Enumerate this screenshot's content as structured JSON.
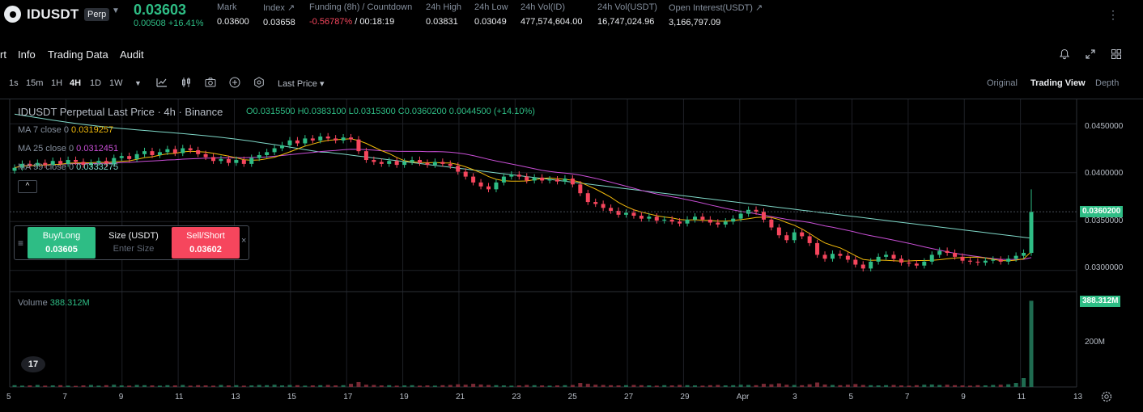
{
  "ticker": {
    "symbol": "IDUSDT",
    "badge": "Perp",
    "last_price": "0.03603",
    "change": "0.00508 +16.41%",
    "stats": [
      {
        "label": "Mark",
        "value": "0.03600"
      },
      {
        "label": "Index ↗",
        "value": "0.03658"
      },
      {
        "label": "Funding (8h) / Countdown",
        "value_neg": "-0.56787%",
        "value": " / 00:18:19"
      },
      {
        "label": "24h High",
        "value": "0.03831"
      },
      {
        "label": "24h Low",
        "value": "0.03049"
      },
      {
        "label": "24h Vol(ID)",
        "value": "477,574,604.00"
      },
      {
        "label": "24h Vol(USDT)",
        "value": "16,747,024.96"
      },
      {
        "label": "Open Interest(USDT) ↗",
        "value": "3,166,797.09"
      }
    ]
  },
  "tabs": [
    "rt",
    "Info",
    "Trading Data",
    "Audit"
  ],
  "toolbar": {
    "timeframes": [
      "1s",
      "15m",
      "1H",
      "4H",
      "1D",
      "1W"
    ],
    "active_timeframe": "4H",
    "price_type": "Last Price",
    "views": [
      "Original",
      "Trading View",
      "Depth"
    ],
    "active_view": "Trading View"
  },
  "legend": {
    "title": "IDUSDT Perpetual Last Price · 4h · Binance",
    "ohlc": "O0.0315500 H0.0383100 L0.0315300 C0.0360200 0.0044500 (+14.10%)",
    "ma": [
      {
        "label": "MA 7 close 0",
        "value": "0.0319257",
        "color": "#f0b90b"
      },
      {
        "label": "MA 25 close 0",
        "value": "0.0312451",
        "color": "#c94fd6"
      },
      {
        "label": "MA 99 close 0",
        "value": "0.0333275",
        "color": "#7fd8c8"
      }
    ],
    "volume_label": "Volume",
    "volume_value": "388.312M",
    "collapse_icon": "^"
  },
  "order_panel": {
    "buy_label": "Buy/Long",
    "buy_price": "0.03605",
    "size_label": "Size (USDT)",
    "size_placeholder": "Enter Size",
    "sell_label": "Sell/Short",
    "sell_price": "0.03602",
    "close_icon": "×"
  },
  "price_axis": [
    "0.0450000",
    "0.0400000",
    "0.0350000",
    "0.0300000"
  ],
  "price_tag": "0.0360200",
  "volume_axis": [
    "200M"
  ],
  "volume_tag": "388.312M",
  "date_axis": [
    "5",
    "7",
    "9",
    "11",
    "13",
    "15",
    "17",
    "19",
    "21",
    "23",
    "25",
    "27",
    "29",
    "Apr",
    "3",
    "5",
    "7",
    "9",
    "11",
    "13"
  ],
  "logo_text": "17",
  "colors": {
    "up": "#2ebd85",
    "down": "#f6465d",
    "ma7": "#f0b90b",
    "ma25": "#c94fd6",
    "ma99": "#7fd8c8"
  },
  "chart_data": {
    "type": "candlestick",
    "ylim": [
      0.028,
      0.0475
    ],
    "closes": [
      0.0405,
      0.0409,
      0.0407,
      0.041,
      0.0408,
      0.0412,
      0.0409,
      0.0413,
      0.0411,
      0.0408,
      0.041,
      0.0412,
      0.0409,
      0.0415,
      0.0417,
      0.0414,
      0.0419,
      0.0422,
      0.0418,
      0.0421,
      0.0424,
      0.042,
      0.0425,
      0.0423,
      0.0419,
      0.0416,
      0.0412,
      0.0414,
      0.041,
      0.0413,
      0.0409,
      0.0415,
      0.0418,
      0.0421,
      0.0425,
      0.0428,
      0.0433,
      0.043,
      0.0435,
      0.0433,
      0.0437,
      0.0435,
      0.0433,
      0.0436,
      0.0434,
      0.0422,
      0.0413,
      0.0411,
      0.0409,
      0.0412,
      0.0408,
      0.0411,
      0.0413,
      0.041,
      0.0408,
      0.0411,
      0.0409,
      0.0407,
      0.0401,
      0.0396,
      0.039,
      0.0386,
      0.0383,
      0.039,
      0.0396,
      0.0398,
      0.0396,
      0.0392,
      0.0395,
      0.0392,
      0.0393,
      0.0391,
      0.0394,
      0.0388,
      0.0379,
      0.037,
      0.0368,
      0.0364,
      0.0361,
      0.0357,
      0.0359,
      0.0356,
      0.0353,
      0.0355,
      0.0351,
      0.0352,
      0.035,
      0.0348,
      0.0352,
      0.0355,
      0.0352,
      0.0349,
      0.0347,
      0.035,
      0.0353,
      0.0358,
      0.0362,
      0.036,
      0.0352,
      0.0344,
      0.0336,
      0.0331,
      0.0339,
      0.0335,
      0.0328,
      0.0316,
      0.0312,
      0.0317,
      0.0315,
      0.0311,
      0.0306,
      0.0302,
      0.0309,
      0.0314,
      0.0316,
      0.0312,
      0.0308,
      0.0307,
      0.0305,
      0.0309,
      0.0316,
      0.032,
      0.0318,
      0.0314,
      0.031,
      0.0309,
      0.0308,
      0.031,
      0.0311,
      0.0309,
      0.0312,
      0.0315,
      0.0318,
      0.036
    ],
    "volumes_m": [
      8,
      6,
      7,
      9,
      6,
      7,
      8,
      6,
      5,
      7,
      9,
      6,
      8,
      10,
      7,
      6,
      9,
      8,
      7,
      6,
      8,
      7,
      9,
      6,
      8,
      7,
      6,
      9,
      7,
      8,
      6,
      7,
      9,
      8,
      10,
      7,
      9,
      8,
      6,
      7,
      8,
      9,
      7,
      8,
      14,
      22,
      10,
      9,
      7,
      8,
      6,
      7,
      8,
      6,
      7,
      6,
      8,
      9,
      12,
      10,
      14,
      11,
      9,
      8,
      7,
      6,
      7,
      9,
      8,
      7,
      6,
      7,
      8,
      9,
      18,
      14,
      10,
      9,
      8,
      7,
      8,
      9,
      8,
      7,
      6,
      8,
      7,
      9,
      8,
      7,
      6,
      8,
      9,
      7,
      8,
      10,
      9,
      8,
      14,
      12,
      16,
      10,
      9,
      8,
      12,
      20,
      11,
      9,
      8,
      10,
      13,
      9,
      8,
      7,
      8,
      9,
      7,
      6,
      8,
      10,
      11,
      9,
      10,
      8,
      7,
      6,
      8,
      7,
      9,
      10,
      12,
      18,
      40,
      388
    ]
  }
}
